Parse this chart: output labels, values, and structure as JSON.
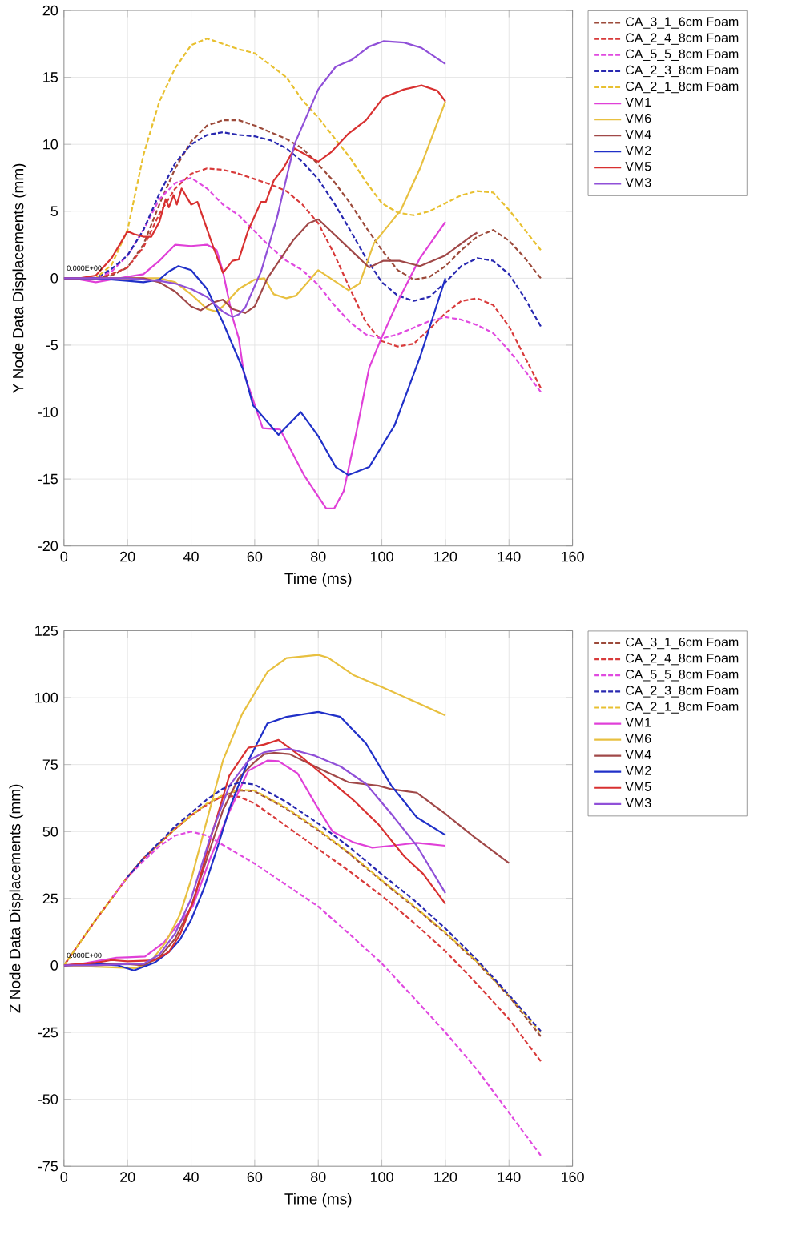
{
  "chart_data": [
    {
      "type": "line",
      "xlabel": "Time (ms)",
      "ylabel": "Y Node Data Displacements (mm)",
      "xlim": [
        0,
        160
      ],
      "xticks": [
        0,
        20,
        40,
        60,
        80,
        100,
        120,
        140,
        160
      ],
      "ylim": [
        -20,
        20
      ],
      "yticks": [
        -20,
        -15,
        -10,
        -5,
        0,
        5,
        10,
        15,
        20
      ],
      "grid": true,
      "legend": "top right",
      "annotations": [
        {
          "text": "0.000E+00",
          "x": 0,
          "y": 0
        }
      ],
      "series": [
        {
          "name": "CA_3_1_6cm Foam",
          "color": "#9c4a3a",
          "line_style": "dashed",
          "x": [
            0,
            10,
            15,
            20,
            25,
            30,
            35,
            40,
            45,
            50,
            55,
            60,
            65,
            70,
            75,
            80,
            85,
            90,
            95,
            100,
            105,
            110,
            115,
            120,
            125,
            130,
            135,
            140,
            145,
            150
          ],
          "values": [
            0,
            0,
            0.2,
            0.8,
            2.5,
            5.5,
            8.2,
            10.2,
            11.4,
            11.8,
            11.8,
            11.4,
            10.9,
            10.4,
            9.7,
            8.5,
            7.2,
            5.6,
            3.8,
            2.1,
            0.6,
            -0.1,
            0.1,
            0.9,
            2.1,
            3.1,
            3.6,
            2.8,
            1.5,
            0
          ]
        },
        {
          "name": "CA_2_4_8cm Foam",
          "color": "#d83a3a",
          "line_style": "dashed",
          "x": [
            0,
            10,
            15,
            20,
            25,
            30,
            35,
            40,
            45,
            50,
            55,
            60,
            65,
            70,
            75,
            80,
            85,
            90,
            95,
            100,
            105,
            110,
            115,
            120,
            125,
            130,
            135,
            140,
            145,
            150
          ],
          "values": [
            0,
            0,
            0.3,
            0.8,
            2.3,
            4.8,
            6.7,
            7.8,
            8.2,
            8.1,
            7.8,
            7.4,
            7.0,
            6.5,
            5.5,
            4.1,
            1.8,
            -0.8,
            -3.3,
            -4.7,
            -5.1,
            -4.9,
            -3.8,
            -2.6,
            -1.7,
            -1.5,
            -2,
            -3.6,
            -5.9,
            -8.2
          ]
        },
        {
          "name": "CA_5_5_8cm Foam",
          "color": "#e04ae0",
          "line_style": "dashed",
          "x": [
            0,
            10,
            15,
            20,
            25,
            30,
            35,
            40,
            45,
            50,
            55,
            60,
            65,
            70,
            75,
            80,
            85,
            90,
            95,
            100,
            105,
            110,
            115,
            120,
            125,
            130,
            135,
            140,
            145,
            150
          ],
          "values": [
            0,
            0,
            0.5,
            1.7,
            3.6,
            5.9,
            7.1,
            7.5,
            6.7,
            5.5,
            4.7,
            3.5,
            2.3,
            1.3,
            0.6,
            -0.5,
            -2,
            -3.3,
            -4.2,
            -4.5,
            -4.2,
            -3.7,
            -3.2,
            -2.9,
            -3.1,
            -3.5,
            -4.1,
            -5.4,
            -6.9,
            -8.5
          ]
        },
        {
          "name": "CA_2_3_8cm Foam",
          "color": "#2828b0",
          "line_style": "dashed",
          "x": [
            0,
            10,
            15,
            20,
            25,
            30,
            35,
            40,
            45,
            50,
            55,
            60,
            65,
            70,
            75,
            80,
            85,
            90,
            95,
            100,
            105,
            110,
            115,
            120,
            125,
            130,
            135,
            140,
            145,
            150
          ],
          "values": [
            0,
            0,
            0.7,
            1.7,
            3.6,
            6.3,
            8.6,
            10,
            10.7,
            10.9,
            10.7,
            10.6,
            10.3,
            9.7,
            8.7,
            7.4,
            5.6,
            3.6,
            1.5,
            -0.3,
            -1.3,
            -1.7,
            -1.4,
            -0.3,
            0.9,
            1.5,
            1.3,
            0.3,
            -1.5,
            -3.6
          ]
        },
        {
          "name": "CA_2_1_8cm Foam",
          "color": "#e8c030",
          "line_style": "dashed",
          "x": [
            0,
            10,
            15,
            20,
            25,
            30,
            35,
            40,
            45,
            50,
            55,
            60,
            65,
            70,
            75,
            80,
            85,
            90,
            95,
            100,
            105,
            110,
            115,
            120,
            125,
            130,
            135,
            140,
            145,
            150
          ],
          "values": [
            0,
            0,
            1,
            3.6,
            9.2,
            13.2,
            15.7,
            17.4,
            17.9,
            17.5,
            17.1,
            16.8,
            15.9,
            15,
            13.3,
            12,
            10.5,
            9,
            7.2,
            5.6,
            4.9,
            4.7,
            5,
            5.6,
            6.2,
            6.5,
            6.4,
            5.1,
            3.6,
            2.1
          ]
        },
        {
          "name": "VM1",
          "color": "#e040d8",
          "line_style": "solid",
          "x": [
            0,
            5,
            10,
            15,
            20,
            25,
            30,
            35,
            40,
            45,
            48,
            50,
            53,
            55,
            56.5,
            62.5,
            68,
            75.5,
            82.5,
            85,
            88,
            92,
            96,
            100,
            105.5,
            112,
            120
          ],
          "values": [
            0,
            -0.1,
            -0.3,
            -0.1,
            0.1,
            0.3,
            1.3,
            2.5,
            2.4,
            2.5,
            2.1,
            0.5,
            -2.9,
            -4.5,
            -7,
            -11.2,
            -11.3,
            -14.7,
            -17.2,
            -17.2,
            -15.9,
            -11.5,
            -6.7,
            -4.4,
            -1.5,
            1.5,
            4.2
          ]
        },
        {
          "name": "VM6",
          "color": "#e8c040",
          "line_style": "solid",
          "x": [
            0,
            10,
            20,
            30,
            35,
            40,
            45,
            48,
            50,
            55,
            60,
            63,
            66,
            70,
            73,
            80,
            89.5,
            93,
            97.5,
            106,
            112,
            120
          ],
          "values": [
            0,
            0,
            0,
            0,
            -0.3,
            -1.2,
            -2.3,
            -2.5,
            -2.1,
            -0.8,
            -0.1,
            0,
            -1.2,
            -1.5,
            -1.3,
            0.6,
            -0.9,
            -0.4,
            2.6,
            5.1,
            8.2,
            13.2
          ]
        },
        {
          "name": "VM4",
          "color": "#a04848",
          "line_style": "solid",
          "x": [
            0,
            10,
            20,
            25,
            30,
            35,
            40,
            43,
            47,
            50,
            53,
            57,
            60,
            64,
            72,
            77,
            80,
            88,
            96,
            100.5,
            105.5,
            112,
            120,
            128.5,
            130
          ],
          "values": [
            0,
            0,
            0,
            0,
            -0.3,
            -1,
            -2.1,
            -2.4,
            -1.8,
            -1.6,
            -2.3,
            -2.6,
            -2.1,
            0,
            2.8,
            4.1,
            4.4,
            2.6,
            0.8,
            1.3,
            1.3,
            0.9,
            1.7,
            3.2,
            3.4
          ]
        },
        {
          "name": "VM2",
          "color": "#2030c8",
          "line_style": "solid",
          "x": [
            0,
            10,
            20,
            25,
            30,
            33,
            36,
            40,
            45,
            50,
            56.5,
            59.5,
            67.5,
            74.5,
            80,
            85.5,
            89.5,
            96,
            104,
            112,
            120
          ],
          "values": [
            0,
            0,
            -0.2,
            -0.3,
            -0.1,
            0.5,
            0.9,
            0.6,
            -0.8,
            -3.3,
            -6.9,
            -9.5,
            -11.7,
            -10,
            -11.8,
            -14.1,
            -14.7,
            -14.1,
            -11,
            -5.9,
            0
          ]
        },
        {
          "name": "VM5",
          "color": "#d83030",
          "line_style": "solid",
          "x": [
            0,
            5,
            10,
            15,
            17,
            20,
            22,
            25,
            27.5,
            30,
            32,
            33,
            34.5,
            35.5,
            37,
            40,
            42,
            47,
            50,
            53,
            55,
            58,
            62,
            63.5,
            66,
            69,
            72.5,
            80,
            84,
            89.5,
            95,
            100.5,
            107,
            112.5,
            117.5,
            120
          ],
          "values": [
            0,
            0,
            0.2,
            1.5,
            2.3,
            3.5,
            3.3,
            3.1,
            3.1,
            4.2,
            5.9,
            5.3,
            6.2,
            5.5,
            6.7,
            5.5,
            5.7,
            2.3,
            0.4,
            1.3,
            1.4,
            3.6,
            5.7,
            5.7,
            7.3,
            8.2,
            9.7,
            8.7,
            9.4,
            10.8,
            11.8,
            13.5,
            14.1,
            14.4,
            14,
            13.2
          ]
        },
        {
          "name": "VM3",
          "color": "#9050d8",
          "line_style": "solid",
          "x": [
            0,
            10,
            20,
            30,
            35,
            40,
            45,
            50,
            53,
            55,
            57,
            62,
            67,
            72.5,
            80,
            85.5,
            90.5,
            96,
            100.5,
            107,
            112.5,
            120
          ],
          "values": [
            0,
            0,
            0,
            -0.2,
            -0.4,
            -0.8,
            -1.4,
            -2.5,
            -2.9,
            -2.7,
            -2.2,
            0.5,
            4.5,
            10,
            14.1,
            15.8,
            16.3,
            17.3,
            17.7,
            17.6,
            17.2,
            16
          ]
        }
      ]
    },
    {
      "type": "line",
      "xlabel": "Time (ms)",
      "ylabel": "Z Node Data Displacements (mm)",
      "xlim": [
        0,
        160
      ],
      "xticks": [
        0,
        20,
        40,
        60,
        80,
        100,
        120,
        140,
        160
      ],
      "ylim": [
        -75,
        125
      ],
      "yticks": [
        -75,
        -50,
        -25,
        0,
        25,
        50,
        75,
        100,
        125
      ],
      "grid": true,
      "legend": "top right",
      "annotations": [
        {
          "text": "0.000E+00",
          "x": 0,
          "y": 0
        }
      ],
      "series": [
        {
          "name": "CA_3_1_6cm Foam",
          "color": "#9c4a3a",
          "line_style": "dashed",
          "x": [
            0,
            5,
            10,
            15,
            20,
            25,
            30,
            35,
            40,
            45,
            50,
            55,
            60,
            70,
            80,
            90,
            100,
            110,
            120,
            130,
            140,
            150
          ],
          "values": [
            0,
            8.5,
            17,
            25,
            33,
            40,
            45.5,
            51,
            56,
            60.3,
            63.3,
            65.3,
            65,
            58.5,
            50.5,
            41.5,
            31.5,
            22,
            12,
            1,
            -11.5,
            -26.5
          ]
        },
        {
          "name": "CA_2_4_8cm Foam",
          "color": "#d83a3a",
          "line_style": "dashed",
          "x": [
            0,
            5,
            10,
            15,
            20,
            25,
            30,
            35,
            40,
            45,
            50,
            55,
            60,
            70,
            80,
            90,
            100,
            110,
            120,
            130,
            140,
            150
          ],
          "values": [
            0,
            8.5,
            17,
            25,
            33,
            40,
            45.5,
            51,
            56,
            60,
            63.3,
            63,
            60.5,
            52,
            43.5,
            35,
            26,
            16,
            5.3,
            -7,
            -20,
            -35.8
          ]
        },
        {
          "name": "CA_5_5_8cm Foam",
          "color": "#e04ae0",
          "line_style": "dashed",
          "x": [
            15,
            20,
            25,
            30,
            35,
            40,
            45,
            50,
            55,
            60,
            70,
            80,
            90,
            100,
            110,
            120,
            130,
            140,
            150
          ],
          "values": [
            25,
            33,
            39,
            44.5,
            48.5,
            50,
            48.5,
            45,
            41.5,
            38,
            30,
            22,
            11.5,
            0.7,
            -12,
            -25,
            -39,
            -55,
            -71
          ]
        },
        {
          "name": "CA_2_3_8cm Foam",
          "color": "#2828b0",
          "line_style": "dashed",
          "x": [
            20,
            25,
            30,
            35,
            40,
            45,
            50,
            55,
            60,
            70,
            80,
            90,
            100,
            110,
            120,
            130,
            140,
            150
          ],
          "values": [
            33,
            40,
            46,
            52,
            57,
            62,
            66,
            68.3,
            67.5,
            61,
            53,
            44,
            34,
            24.5,
            13.8,
            2,
            -11,
            -24.5
          ]
        },
        {
          "name": "CA_2_1_8cm Foam",
          "color": "#e8c030",
          "line_style": "dashed",
          "x": [
            0,
            5,
            10,
            15,
            20,
            25,
            30,
            35,
            40,
            45,
            50,
            55,
            60,
            70,
            80,
            90,
            100,
            110,
            120,
            130,
            140,
            150
          ],
          "values": [
            0,
            8.5,
            17,
            25,
            33,
            40,
            45.5,
            51,
            56,
            60.5,
            63.6,
            65.6,
            65.3,
            58.8,
            50.8,
            41.8,
            31.8,
            22.3,
            12.3,
            1.3,
            -11.3,
            -25
          ]
        },
        {
          "name": "VM1",
          "color": "#e040d8",
          "line_style": "solid",
          "x": [
            0,
            5,
            10,
            16.5,
            20,
            25.5,
            31.5,
            35,
            40.5,
            46,
            52,
            58,
            64,
            67.5,
            73.5,
            79,
            84.5,
            91,
            97,
            103,
            111,
            120
          ],
          "values": [
            0,
            0.5,
            1.5,
            2.9,
            3,
            3.3,
            8.6,
            14,
            22,
            40,
            57.4,
            72.7,
            76.5,
            76.3,
            71.7,
            60.5,
            50,
            46,
            44,
            44.7,
            45.8,
            44.7
          ]
        },
        {
          "name": "VM6",
          "color": "#e8c040",
          "line_style": "solid",
          "x": [
            0,
            10,
            22.5,
            27,
            32,
            36.5,
            40,
            44,
            50,
            56,
            64,
            70,
            80,
            83,
            91,
            100,
            110,
            120
          ],
          "values": [
            0,
            -0.5,
            -1,
            1,
            8.6,
            19,
            32,
            50,
            76.5,
            93.8,
            109.6,
            114.8,
            116,
            115,
            108.5,
            104,
            98.7,
            93.4
          ]
        },
        {
          "name": "VM4",
          "color": "#a04848",
          "line_style": "solid",
          "x": [
            0,
            10,
            20,
            25,
            30,
            35,
            40,
            45,
            50,
            55,
            60,
            63,
            66,
            71,
            80,
            89.5,
            99,
            103,
            111,
            120,
            129,
            140
          ],
          "values": [
            0,
            0.5,
            0.5,
            0,
            3,
            10,
            22,
            40,
            58,
            70,
            76,
            78.9,
            79.4,
            78.9,
            73.7,
            68.4,
            67.1,
            65.8,
            64.5,
            56.6,
            48,
            38.2
          ]
        },
        {
          "name": "VM2",
          "color": "#2030c8",
          "line_style": "solid",
          "x": [
            0,
            10,
            17,
            22,
            28.5,
            33,
            36.5,
            40,
            44,
            48,
            52,
            58,
            64,
            70,
            80,
            87,
            95,
            103,
            111,
            120
          ],
          "values": [
            0,
            0.5,
            0,
            -1.9,
            1,
            5,
            9.6,
            17,
            28.7,
            43,
            58.4,
            76.5,
            90.4,
            92.8,
            94.7,
            92.8,
            82.9,
            67.1,
            55.3,
            48.7
          ]
        },
        {
          "name": "VM5",
          "color": "#d83030",
          "line_style": "solid",
          "x": [
            0,
            10,
            15,
            20,
            28.5,
            33,
            36.5,
            41,
            46,
            52,
            58,
            63,
            67.5,
            75,
            83,
            91,
            99,
            107,
            113,
            120
          ],
          "values": [
            0,
            1,
            2,
            1.5,
            1.9,
            5,
            11.5,
            25,
            46.9,
            70.8,
            81.3,
            82.5,
            84.2,
            77.6,
            69.7,
            61.8,
            52.6,
            40.8,
            34.2,
            23
          ]
        },
        {
          "name": "VM3",
          "color": "#9050d8",
          "line_style": "solid",
          "x": [
            0,
            10,
            20,
            25,
            30,
            35,
            40,
            46,
            52,
            58,
            63,
            67,
            71,
            79,
            87,
            95,
            103,
            111,
            120
          ],
          "values": [
            0,
            0,
            0.5,
            0.5,
            4,
            12,
            24.9,
            47.8,
            67,
            76.5,
            79.6,
            80.4,
            80.9,
            78.3,
            74.3,
            67.8,
            56.6,
            44.7,
            27
          ]
        }
      ]
    }
  ]
}
